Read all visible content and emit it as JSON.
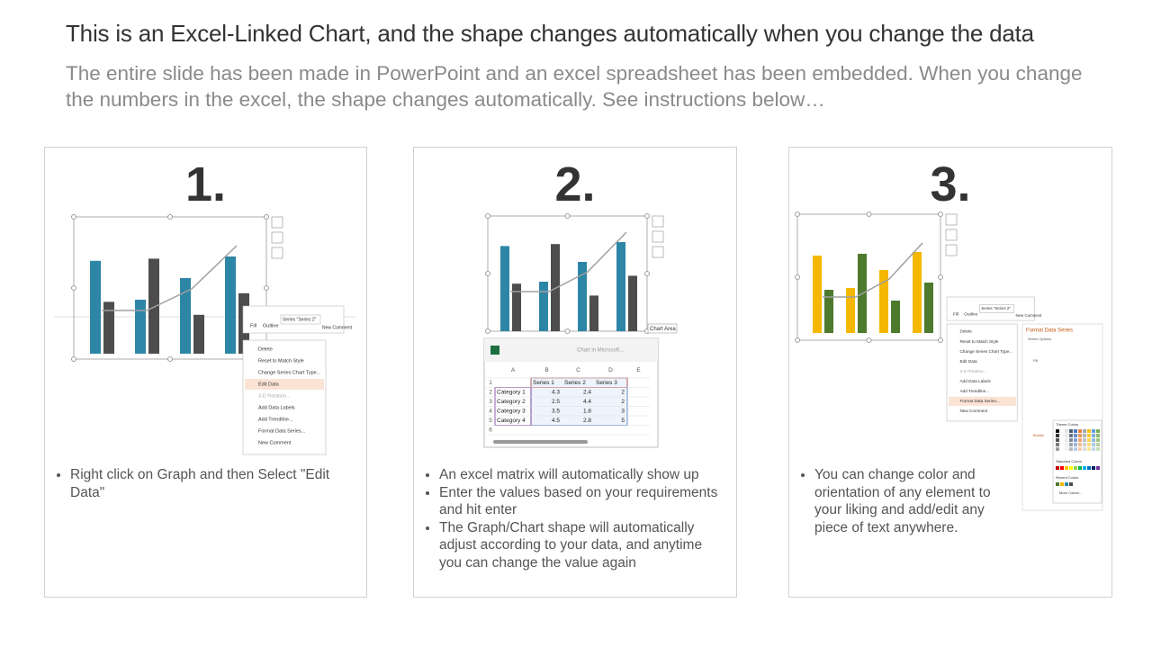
{
  "header": {
    "title": "This is an Excel-Linked Chart, and the shape changes automatically when you change the data",
    "subtitle": "The entire slide has been made in PowerPoint and an excel spreadsheet has been embedded. When you change the numbers in the excel, the shape changes automatically. See instructions below…"
  },
  "panels": [
    {
      "number": "1.",
      "colors": [
        "#2e86a6",
        "#4d4d4d",
        "#a0a0a0"
      ],
      "bullets": [
        "Right click on Graph and then Select \"Edit Data\""
      ]
    },
    {
      "number": "2.",
      "colors": [
        "#2e86a6",
        "#4d4d4d",
        "#a0a0a0"
      ],
      "bullets": [
        "An excel matrix will automatically show up",
        "Enter the values based on your requirements and hit enter",
        "The Graph/Chart shape will automatically adjust according to your data, and anytime you can change the value again"
      ]
    },
    {
      "number": "3.",
      "colors": [
        "#f5b800",
        "#4e7a2e",
        "#a0a0a0"
      ],
      "bullets": [
        "You can change color and orientation of any element to your liking and add/edit any piece of text anywhere."
      ]
    }
  ],
  "toolbar": {
    "fill": "Fill",
    "outline": "Outline",
    "series": "Series \"Series 2\"",
    "comment": "New Comment"
  },
  "context_menu": [
    "Delete",
    "Reset to Match Style",
    "Change Series Chart Type...",
    "Edit Data",
    "3-D Rotation...",
    "Add Data Labels",
    "Add Trendline...",
    "Format Data Series...",
    "New Comment"
  ],
  "tooltip": "Chart Area",
  "excel": {
    "title": "Chart in Microsoft...",
    "column_letters": [
      "A",
      "B",
      "C",
      "D",
      "E"
    ],
    "row_numbers": [
      "1",
      "2",
      "3",
      "4",
      "5",
      "6"
    ],
    "header": [
      "Series 1",
      "Series 2",
      "Series 3"
    ],
    "rows": [
      {
        "category": "Category 1",
        "values": [
          4.3,
          2.4,
          2
        ]
      },
      {
        "category": "Category 2",
        "values": [
          2.5,
          4.4,
          2
        ]
      },
      {
        "category": "Category 3",
        "values": [
          3.5,
          1.8,
          3
        ]
      },
      {
        "category": "Category 4",
        "values": [
          4.5,
          2.8,
          5
        ]
      }
    ]
  },
  "format_pane": {
    "title": "Format Data Series",
    "subtitle": "Series Options",
    "fill": "Fill",
    "border": "Border",
    "theme_colors": "Theme Colors",
    "standard_colors": "Standard Colors",
    "recent_colors": "Recent Colors",
    "more_colors": "More Colors..."
  }
}
